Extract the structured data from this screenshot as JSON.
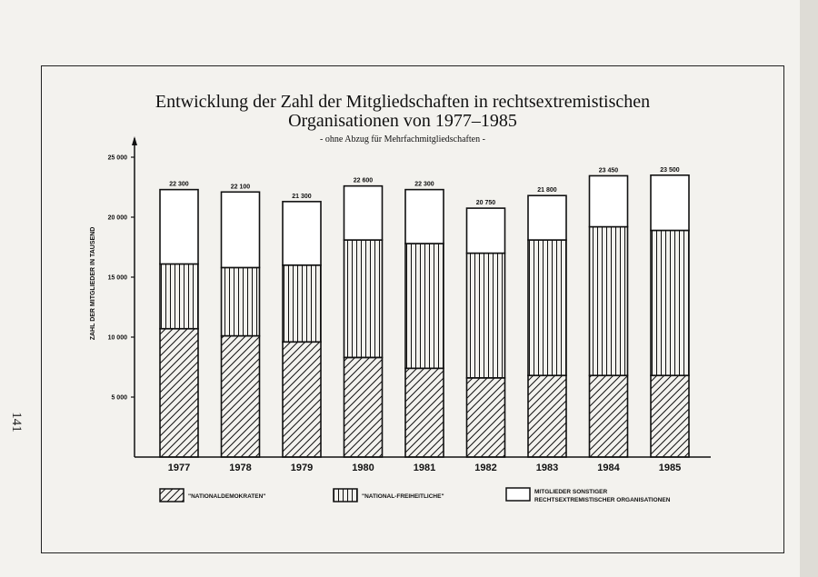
{
  "page_number": "141",
  "chart_data": {
    "type": "bar",
    "stacked": true,
    "title_line1": "Entwicklung der Zahl der Mitgliedschaften in rechtsextremistischen",
    "title_line2": "Organisationen von 1977–1985",
    "subtitle": "- ohne Abzug für Mehrfachmitgliedschaften -",
    "ylabel": "ZAHL DER MITGLIEDER IN TAUSEND",
    "ylim": [
      0,
      25000
    ],
    "yticks": [
      "5 000",
      "10 000",
      "15 000",
      "20 000",
      "25 000"
    ],
    "ytick_values": [
      5000,
      10000,
      15000,
      20000,
      25000
    ],
    "categories": [
      "1977",
      "1978",
      "1979",
      "1980",
      "1981",
      "1982",
      "1983",
      "1984",
      "1985"
    ],
    "totals": [
      22300,
      22100,
      21300,
      22600,
      22300,
      20750,
      21800,
      23450,
      23500
    ],
    "total_labels": [
      "22 300",
      "22 100",
      "21 300",
      "22 600",
      "22 300",
      "20 750",
      "21 800",
      "23 450",
      "23 500"
    ],
    "series": [
      {
        "name": "\"NATIONALDEMOKRATEN\"",
        "pattern": "diagonal-hatch",
        "values": [
          10700,
          10100,
          9600,
          8300,
          7400,
          6600,
          6800,
          6800,
          6800
        ]
      },
      {
        "name": "\"NATIONAL-FREIHEITLICHE\"",
        "pattern": "vertical-lines",
        "values": [
          5400,
          5700,
          6400,
          9800,
          10400,
          10400,
          11300,
          12400,
          12100
        ]
      },
      {
        "name": "MITGLIEDER SONSTIGER RECHTSEXTREMISTISCHER ORGANISATIONEN",
        "name_line1": "MITGLIEDER SONSTIGER",
        "name_line2": "RECHTSEXTREMISTISCHER ORGANISATIONEN",
        "pattern": "white",
        "values": [
          6200,
          6300,
          5300,
          4500,
          4500,
          3750,
          3700,
          4250,
          4600
        ]
      }
    ],
    "grid": false,
    "legend_position": "bottom"
  }
}
